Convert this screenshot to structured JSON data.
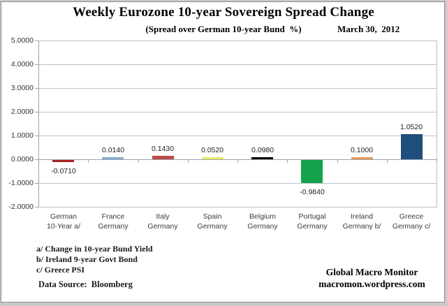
{
  "chart_data": {
    "type": "bar",
    "title": "Weekly Eurozone 10-year Sovereign Spread Change",
    "subtitle": "(Spread over German 10-year Bund  %)",
    "date_label": "March 30,  2012",
    "categories": [
      "German 10-Year a/",
      "France Germany",
      "Italy Germany",
      "Spain Germany",
      "Belgium Germany",
      "Portugal Germany",
      "Ireland Germany b/",
      "Greece Germany c/"
    ],
    "category_lines": [
      [
        "German",
        "10-Year a/"
      ],
      [
        "France",
        "Germany"
      ],
      [
        "Italy",
        "Germany"
      ],
      [
        "Spain",
        "Germany"
      ],
      [
        "Belgium",
        "Germany"
      ],
      [
        "Portugal",
        "Germany"
      ],
      [
        "Ireland",
        "Germany b/"
      ],
      [
        "Greece",
        "Germany c/"
      ]
    ],
    "values": [
      -0.071,
      0.014,
      0.143,
      0.052,
      0.098,
      -0.984,
      0.1,
      1.052
    ],
    "value_labels": [
      "-0.0710",
      "0.0140",
      "0.1430",
      "0.0520",
      "0.0980",
      "-0.9840",
      "0.1000",
      "1.0520"
    ],
    "bar_colors": [
      "#a82025",
      "#86abcf",
      "#be4b48",
      "#e9e96b",
      "#000000",
      "#12a34c",
      "#e29b52",
      "#204e7c"
    ],
    "y_tick_labels": [
      "5.0000",
      "4.0000",
      "3.0000",
      "2.0000",
      "1.0000",
      "0.0000",
      "-1.0000",
      "-2.0000"
    ],
    "ylim": [
      -2.0,
      5.0
    ],
    "xlabel": "",
    "ylabel": "",
    "grid": true,
    "legend": false,
    "gridline_color": "#b9c2cc",
    "axis_color": "#9aa4af"
  },
  "footnotes": {
    "lines": [
      "a/ Change in 10-year Bund Yield",
      "b/ Ireland 9-year Govt Bond",
      "c/ Greece PSI"
    ],
    "source": "Data Source:  Bloomberg"
  },
  "attribution": {
    "line1": "Global Macro Monitor",
    "line2": "macromon.wordpress.com"
  }
}
